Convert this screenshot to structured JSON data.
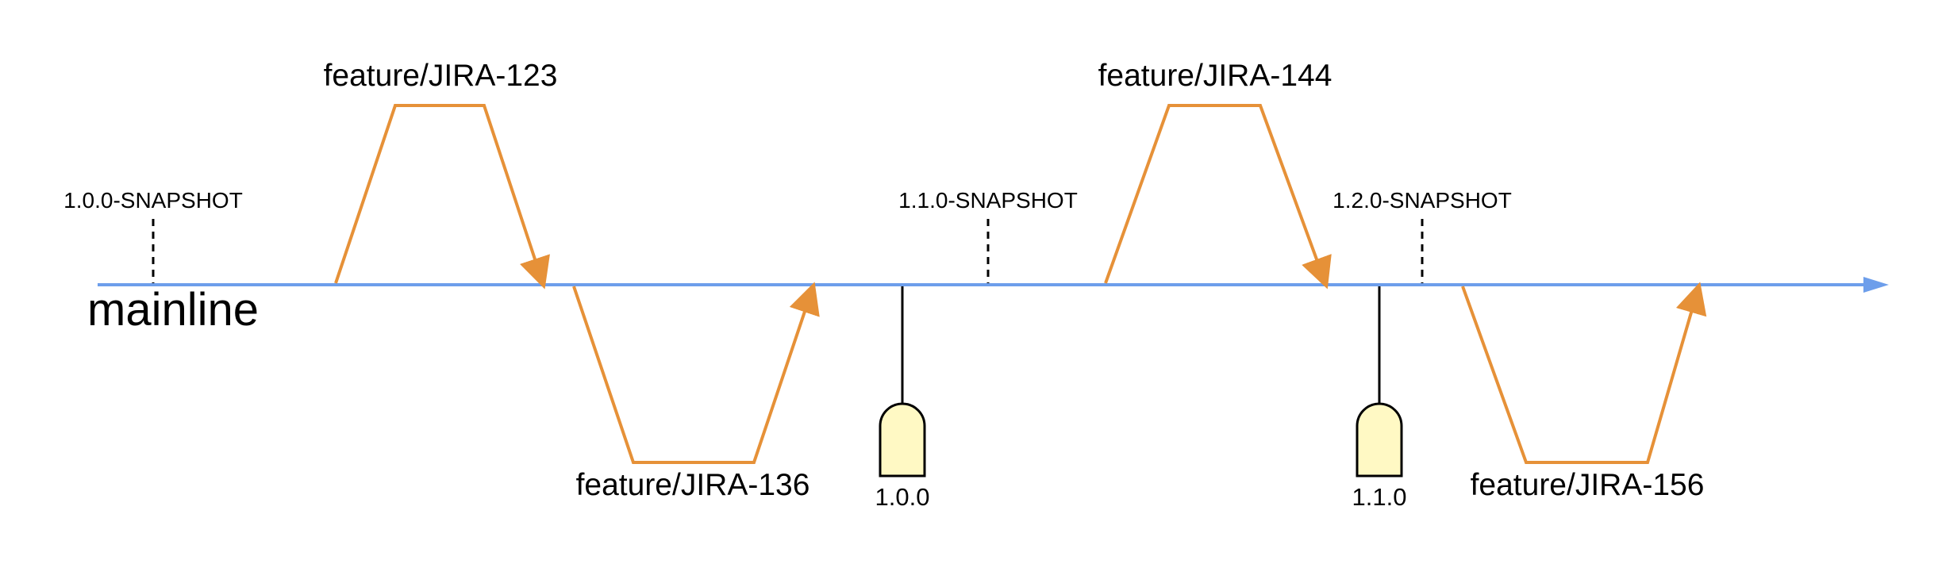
{
  "mainline": {
    "label": "mainline",
    "color": "#6d9eeb"
  },
  "feature_color": "#e69138",
  "tag_color": "#fff9c4",
  "snapshots": [
    {
      "label": "1.0.0-SNAPSHOT"
    },
    {
      "label": "1.1.0-SNAPSHOT"
    },
    {
      "label": "1.2.0-SNAPSHOT"
    }
  ],
  "features": [
    {
      "label": "feature/JIRA-123",
      "side": "above"
    },
    {
      "label": "feature/JIRA-136",
      "side": "below"
    },
    {
      "label": "feature/JIRA-144",
      "side": "above"
    },
    {
      "label": "feature/JIRA-156",
      "side": "below"
    }
  ],
  "releases": [
    {
      "label": "1.0.0",
      "icon": "release-tag-icon"
    },
    {
      "label": "1.1.0",
      "icon": "release-tag-icon"
    }
  ]
}
